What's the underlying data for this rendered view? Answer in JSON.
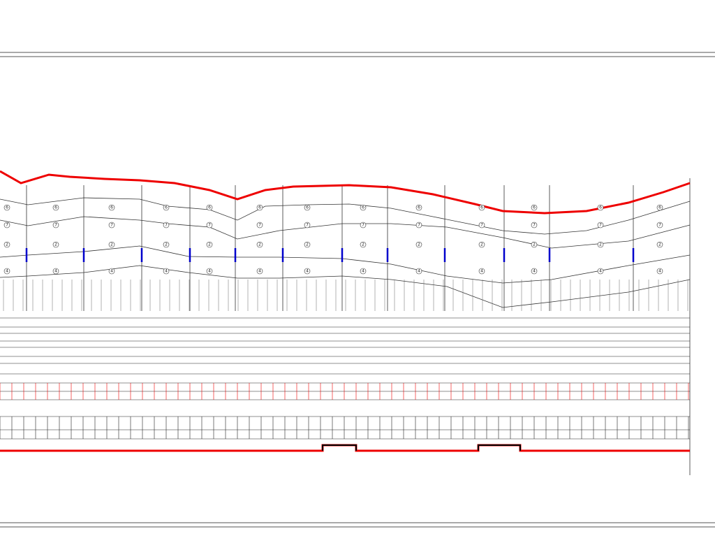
{
  "soil_layers": {
    "labels": [
      "6",
      "7",
      "2",
      "4"
    ]
  }
}
